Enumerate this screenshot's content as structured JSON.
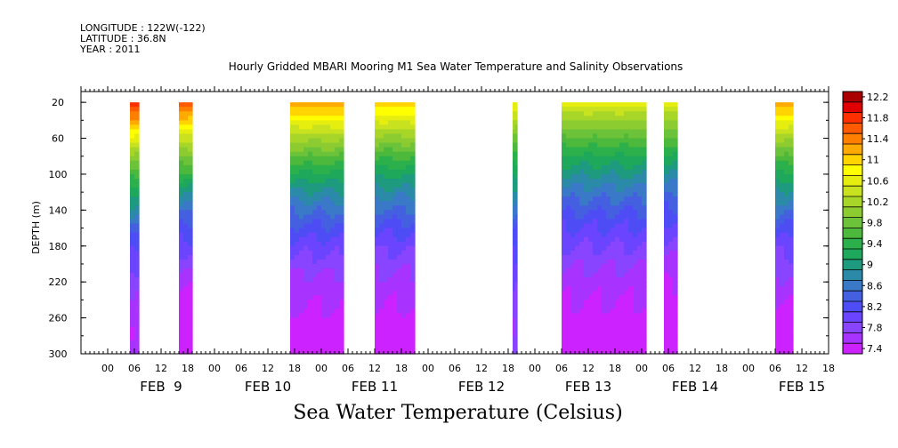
{
  "header": {
    "longitude": "LONGITUDE : 122W(-122)",
    "latitude": "LATITUDE : 36.8N",
    "year": "YEAR : 2011"
  },
  "chart_data": {
    "type": "heatmap",
    "title": "Hourly Gridded MBARI Mooring M1 Sea Water Temperature and Salinity Observations",
    "bottom_title": "Sea Water Temperature (Celsius)",
    "ylabel": "DEPTH (m)",
    "xlabel": "",
    "y_reversed": true,
    "ylim": [
      300,
      8
    ],
    "y_ticks": [
      20,
      60,
      100,
      140,
      180,
      220,
      260,
      300
    ],
    "x_range_hours": [
      -6,
      162
    ],
    "x_hour_labels": [
      "00",
      "06",
      "12",
      "18",
      "00",
      "06",
      "12",
      "18",
      "00",
      "06",
      "12",
      "18",
      "00",
      "06",
      "12",
      "18",
      "00",
      "06",
      "12",
      "18",
      "00",
      "06",
      "12",
      "18",
      "00",
      "06",
      "12",
      "18"
    ],
    "x_day_labels": [
      "FEB  9",
      "FEB 10",
      "FEB 11",
      "FEB 12",
      "FEB 13",
      "FEB 14",
      "FEB 15"
    ],
    "colorbar": {
      "levels": [
        7.4,
        7.6,
        7.8,
        8.0,
        8.2,
        8.4,
        8.6,
        8.8,
        9.0,
        9.2,
        9.4,
        9.6,
        9.8,
        10.0,
        10.2,
        10.4,
        10.6,
        10.8,
        11.0,
        11.2,
        11.4,
        11.6,
        11.8,
        12.0,
        12.2,
        12.4
      ],
      "labels": [
        "12.2",
        "11.8",
        "11.4",
        "11",
        "10.6",
        "10.2",
        "9.8",
        "9.4",
        "9",
        "8.6",
        "8.2",
        "7.8",
        "7.4"
      ],
      "colors": [
        "#cc22ff",
        "#a833ff",
        "#8844ff",
        "#6a44ff",
        "#4e4cf5",
        "#4460e0",
        "#3a78c8",
        "#2a8aa8",
        "#1e9a7e",
        "#1ea85c",
        "#2bb04c",
        "#4cb83c",
        "#6cc238",
        "#8ccc30",
        "#a8d628",
        "#c8e220",
        "#e6ee10",
        "#ffff00",
        "#ffd400",
        "#ffaa00",
        "#ff8000",
        "#ff5a00",
        "#ff3000",
        "#e00000",
        "#aa0000"
      ]
    },
    "segments": [
      {
        "start_hour": 5,
        "end_hour": 7,
        "surface_temp": 12.0,
        "deep_temp": 7.6
      },
      {
        "start_hour": 16,
        "end_hour": 19,
        "surface_temp": 11.8,
        "deep_temp": 7.4
      },
      {
        "start_hour": 41,
        "end_hour": 53,
        "surface_temp": 11.4,
        "deep_temp": 7.5
      },
      {
        "start_hour": 60,
        "end_hour": 69,
        "surface_temp": 11.2,
        "deep_temp": 7.5
      },
      {
        "start_hour": 91,
        "end_hour": 92,
        "surface_temp": 10.8,
        "deep_temp": 7.8
      },
      {
        "start_hour": 102,
        "end_hour": 121,
        "surface_temp": 10.7,
        "deep_temp": 7.5
      },
      {
        "start_hour": 125,
        "end_hour": 128,
        "surface_temp": 10.7,
        "deep_temp": 7.4
      },
      {
        "start_hour": 150,
        "end_hour": 154,
        "surface_temp": 11.4,
        "deep_temp": 7.5
      }
    ]
  }
}
